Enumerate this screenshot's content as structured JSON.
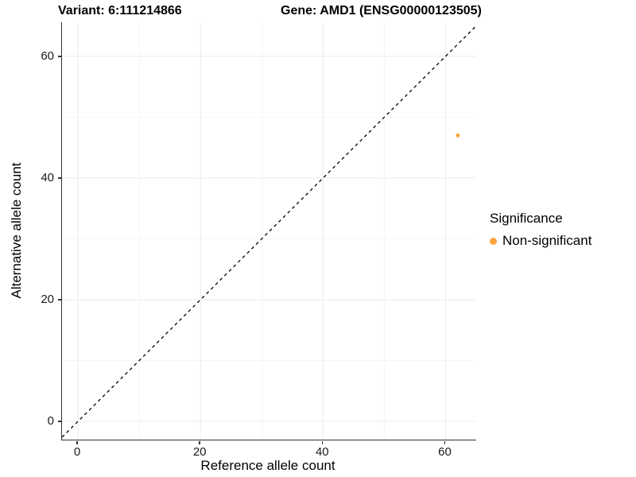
{
  "titles": {
    "variant": "Variant: 6:111214866",
    "gene": "Gene: AMD1 (ENSG00000123505)"
  },
  "axes": {
    "x_label": "Reference allele count",
    "y_label": "Alternative allele count",
    "x_tick_labels": [
      "0",
      "20",
      "40",
      "60"
    ],
    "y_tick_labels": [
      "0",
      "20",
      "40",
      "60"
    ]
  },
  "legend": {
    "title": "Significance",
    "items": [
      {
        "label": "Non-significant",
        "color": "#FAA43C"
      }
    ]
  },
  "chart_data": {
    "type": "scatter",
    "title_left": "Variant: 6:111214866",
    "title_right": "Gene: AMD1 (ENSG00000123505)",
    "xlabel": "Reference allele count",
    "ylabel": "Alternative allele count",
    "xlim": [
      -2.6,
      65.0
    ],
    "ylim": [
      -3.0,
      65.6
    ],
    "x_ticks": [
      0,
      20,
      40,
      60
    ],
    "y_ticks": [
      0,
      20,
      40,
      60
    ],
    "x_minor_ticks": [
      10,
      30,
      50
    ],
    "y_minor_ticks": [
      10,
      30,
      50
    ],
    "grid": true,
    "points": [
      {
        "x": 62,
        "y": 47,
        "series": "Non-significant"
      }
    ],
    "identity_line": {
      "style": "dashed",
      "slope": 1,
      "intercept": 0
    },
    "legend_position": "right",
    "colors": {
      "point": "#FAA43C",
      "grid_major": "#EBEBEB",
      "grid_minor": "#F5F5F5",
      "axis": "#333333",
      "abline": "#000000"
    }
  }
}
